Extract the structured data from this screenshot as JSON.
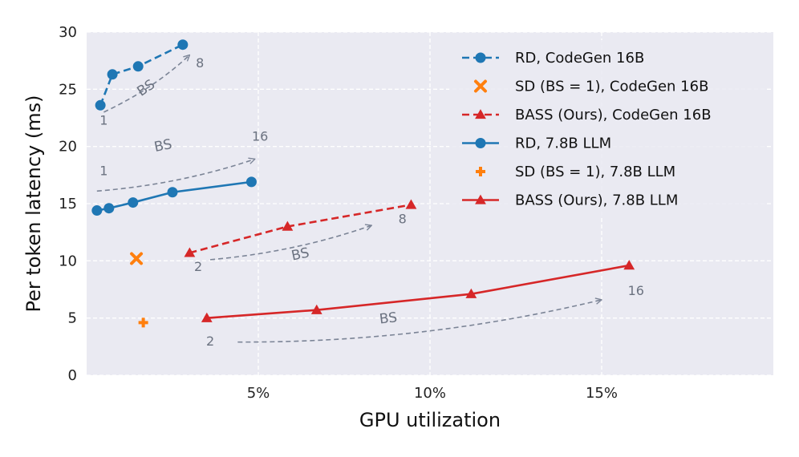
{
  "chart_data": {
    "type": "line",
    "title": "",
    "xlabel": "GPU utilization",
    "ylabel": "Per token latency (ms)",
    "xlim": [
      0,
      20
    ],
    "ylim": [
      0,
      30
    ],
    "x_ticks": [
      {
        "value": 5,
        "label": "5%"
      },
      {
        "value": 10,
        "label": "10%"
      },
      {
        "value": 15,
        "label": "15%"
      }
    ],
    "y_ticks": [
      {
        "value": 0,
        "label": "0"
      },
      {
        "value": 5,
        "label": "5"
      },
      {
        "value": 10,
        "label": "10"
      },
      {
        "value": 15,
        "label": "15"
      },
      {
        "value": 20,
        "label": "20"
      },
      {
        "value": 25,
        "label": "25"
      },
      {
        "value": 30,
        "label": "30"
      }
    ],
    "grid": true,
    "legend_position": "top-right",
    "series": [
      {
        "name": "RD, CodeGen 16B",
        "color": "#1f77b4",
        "marker": "circle",
        "line": "dashed",
        "x": [
          0.4,
          0.75,
          1.5,
          2.8
        ],
        "y": [
          23.6,
          26.3,
          27.0,
          28.9
        ]
      },
      {
        "name": "SD (BS = 1), CodeGen 16B",
        "color": "#ff7f0e",
        "marker": "x",
        "line": "none",
        "x": [
          1.45
        ],
        "y": [
          10.2
        ]
      },
      {
        "name": "BASS (Ours), CodeGen 16B",
        "color": "#d62728",
        "marker": "triangle",
        "line": "dashed",
        "x": [
          3.0,
          5.85,
          9.45
        ],
        "y": [
          10.7,
          13.0,
          14.9
        ]
      },
      {
        "name": "RD, 7.8B LLM",
        "color": "#1f77b4",
        "marker": "circle",
        "line": "solid",
        "x": [
          0.3,
          0.65,
          1.35,
          2.5,
          4.8
        ],
        "y": [
          14.4,
          14.6,
          15.1,
          16.0,
          16.9
        ]
      },
      {
        "name": "SD (BS = 1), 7.8B LLM",
        "color": "#ff7f0e",
        "marker": "plus",
        "line": "none",
        "x": [
          1.65
        ],
        "y": [
          4.6
        ]
      },
      {
        "name": "BASS (Ours), 7.8B LLM",
        "color": "#d62728",
        "marker": "triangle",
        "line": "solid",
        "x": [
          3.5,
          6.7,
          11.2,
          15.8
        ],
        "y": [
          5.0,
          5.7,
          7.1,
          9.6
        ]
      }
    ],
    "annotations": [
      {
        "kind": "arrow",
        "from": [
          0.5,
          23.0
        ],
        "to": [
          3.0,
          28.0
        ],
        "label": "BS",
        "label_at": [
          1.8,
          24.8
        ]
      },
      {
        "kind": "label",
        "text": "1",
        "at": [
          0.5,
          21.9
        ]
      },
      {
        "kind": "label",
        "text": "8",
        "at": [
          3.3,
          26.9
        ]
      },
      {
        "kind": "arrow",
        "from": [
          0.3,
          16.1
        ],
        "to": [
          4.9,
          18.9
        ],
        "label": "BS",
        "label_at": [
          2.25,
          19.7
        ]
      },
      {
        "kind": "label",
        "text": "1",
        "at": [
          0.5,
          17.5
        ]
      },
      {
        "kind": "label",
        "text": "16",
        "at": [
          5.05,
          20.5
        ]
      },
      {
        "kind": "arrow",
        "from": [
          3.6,
          10.1
        ],
        "to": [
          8.3,
          13.1
        ],
        "label": "BS",
        "label_at": [
          6.25,
          10.2
        ]
      },
      {
        "kind": "label",
        "text": "2",
        "at": [
          3.25,
          9.1
        ]
      },
      {
        "kind": "label",
        "text": "8",
        "at": [
          9.2,
          13.3
        ]
      },
      {
        "kind": "arrow",
        "from": [
          4.4,
          2.9
        ],
        "to": [
          15.0,
          6.6
        ],
        "label": "BS",
        "label_at": [
          8.8,
          4.6
        ]
      },
      {
        "kind": "label",
        "text": "2",
        "at": [
          3.6,
          2.6
        ]
      },
      {
        "kind": "label",
        "text": "16",
        "at": [
          16.0,
          7.0
        ]
      }
    ]
  }
}
